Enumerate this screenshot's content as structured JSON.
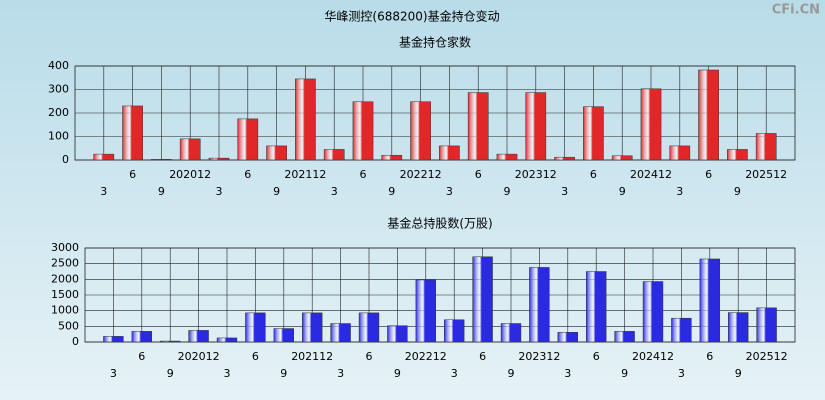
{
  "title": "华峰测控(688200)基金持仓变动",
  "watermark": "CFi.CN",
  "chart_data": [
    {
      "type": "bar",
      "title": "基金持仓家数",
      "color": "#e02828",
      "grid": true,
      "categories": [
        "3",
        "6",
        "9",
        "202012",
        "3",
        "6",
        "9",
        "202112",
        "3",
        "6",
        "9",
        "202212",
        "3",
        "6",
        "9",
        "202312",
        "3",
        "6",
        "9",
        "202412",
        "3",
        "6",
        "9",
        "202512"
      ],
      "values": [
        25,
        230,
        3,
        90,
        8,
        175,
        60,
        345,
        45,
        248,
        20,
        248,
        60,
        287,
        25,
        287,
        12,
        227,
        18,
        303,
        60,
        383,
        45,
        113
      ],
      "ylim": [
        0,
        400
      ],
      "yticks": [
        0,
        100,
        200,
        300,
        400
      ]
    },
    {
      "type": "bar",
      "title": "基金总持股数(万股)",
      "color": "#2a2ae0",
      "grid": true,
      "categories": [
        "3",
        "6",
        "9",
        "202012",
        "3",
        "6",
        "9",
        "202112",
        "3",
        "6",
        "9",
        "202212",
        "3",
        "6",
        "9",
        "202312",
        "3",
        "6",
        "9",
        "202412",
        "3",
        "6",
        "9",
        "202512"
      ],
      "values": [
        180,
        340,
        30,
        370,
        130,
        930,
        430,
        930,
        590,
        930,
        520,
        1980,
        710,
        2720,
        590,
        2380,
        310,
        2250,
        340,
        1930,
        760,
        2650,
        940,
        1090
      ],
      "ylim": [
        0,
        3000
      ],
      "yticks": [
        0,
        500,
        1000,
        1500,
        2000,
        2500,
        3000
      ]
    }
  ]
}
